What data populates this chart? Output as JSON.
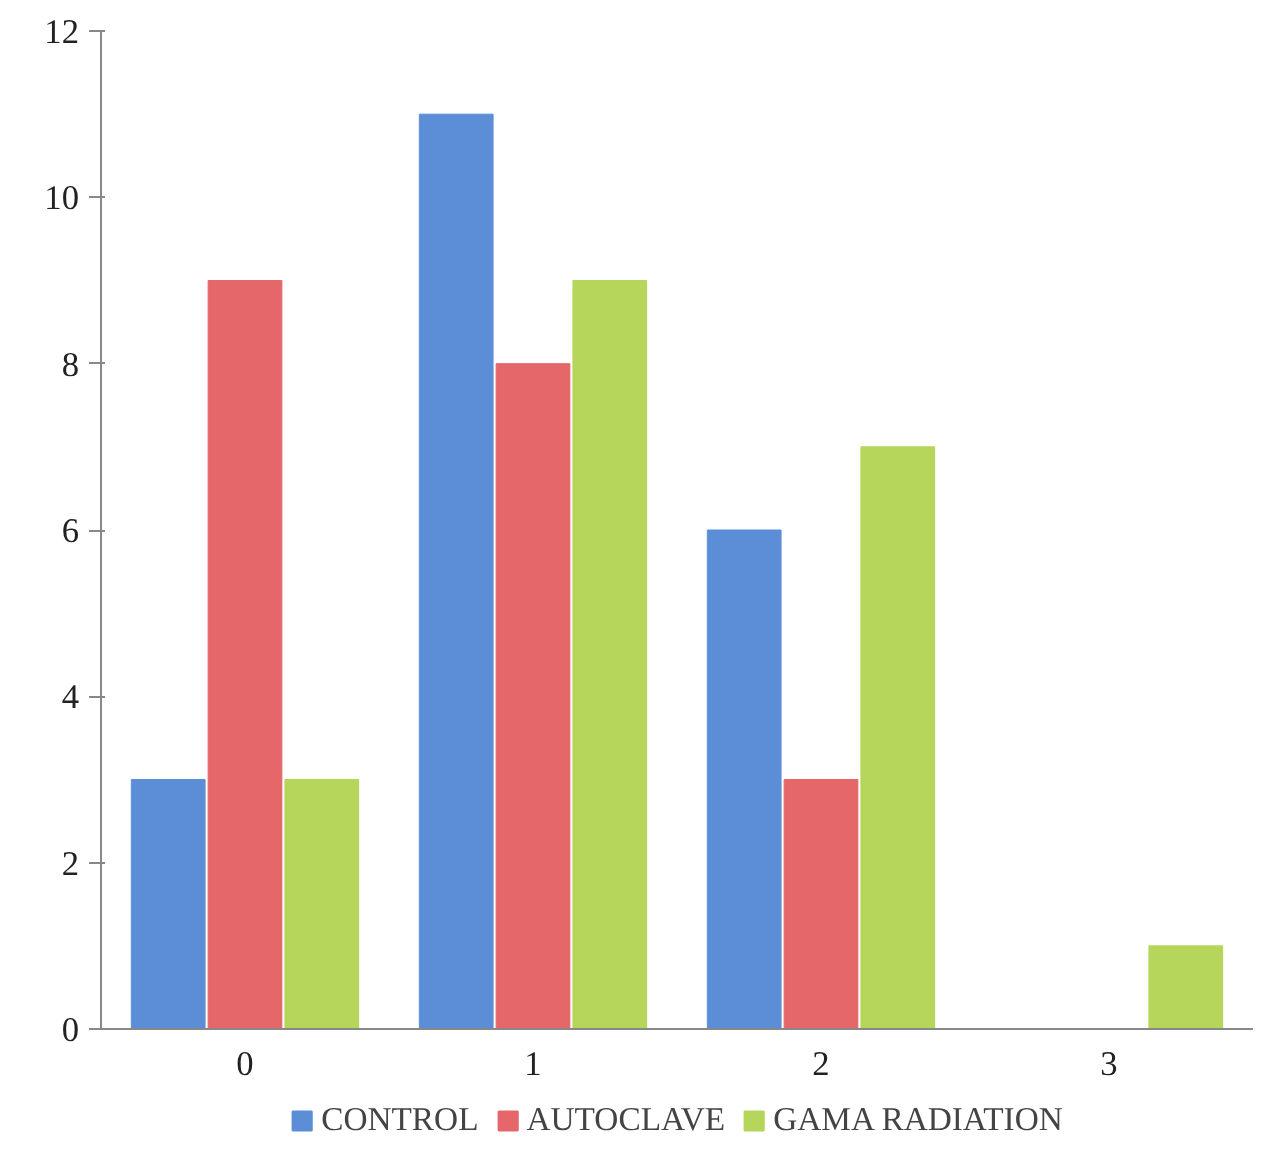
{
  "chart_data": {
    "type": "bar",
    "categories": [
      "0",
      "1",
      "2",
      "3"
    ],
    "series": [
      {
        "name": "CONTROL",
        "color": "#5b8ed6",
        "values": [
          3,
          11,
          6,
          0
        ]
      },
      {
        "name": "AUTOCLAVE",
        "color": "#e5676a",
        "values": [
          9,
          8,
          3,
          0
        ]
      },
      {
        "name": "GAMA RADIATION",
        "color": "#b5d65a",
        "values": [
          3,
          9,
          7,
          1
        ]
      }
    ],
    "ylim": [
      0,
      12
    ],
    "yticks": [
      0,
      2,
      4,
      6,
      8,
      10,
      12
    ],
    "grid": false,
    "legend": "bottom"
  }
}
